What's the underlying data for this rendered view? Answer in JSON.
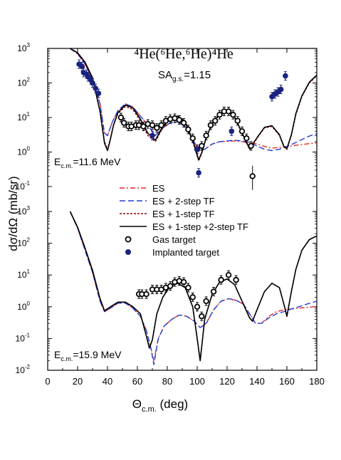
{
  "chart_data": {
    "type": "scatter",
    "title": "⁴He(⁶He,⁶He)⁴He",
    "annotation": "SAg.s.=1.15",
    "annotation_main": "SA",
    "annotation_sub": "g.s.",
    "annotation_value": "=1.15",
    "xlabel_main": "Θ",
    "xlabel_sub": "c.m.",
    "xlabel_unit": " (deg)",
    "ylabel": "dσ/dΩ  (mb/sr)",
    "xlim": [
      0,
      180
    ],
    "x_ticks": [
      "0",
      "20",
      "40",
      "60",
      "80",
      "100",
      "120",
      "140",
      "160",
      "180"
    ],
    "y_scale": "log",
    "legend": {
      "placement": "center",
      "entries": [
        {
          "label": "ES",
          "style": "dash-dot",
          "color": "#e8251f"
        },
        {
          "label": "ES + 2-step TF",
          "style": "dashed",
          "color": "#1f3fd8"
        },
        {
          "label": "ES + 1-step TF",
          "style": "short-dashed",
          "color": "#8b0000"
        },
        {
          "label": "ES + 1-step +2-step TF",
          "style": "solid",
          "color": "#000000"
        },
        {
          "label": "Gas target",
          "style": "open-circle",
          "color": "#000000"
        },
        {
          "label": "Implanted target",
          "style": "filled-circle",
          "color": "#1a237e"
        }
      ]
    },
    "panels": [
      {
        "id": "upper",
        "energy_label_main": "E",
        "energy_label_sub": "c.m.",
        "energy_label_value": "=11.6 MeV",
        "y_tick_exponents": [
          "-1",
          "0",
          "1",
          "2",
          "3"
        ],
        "ylim": [
          0.1,
          1000
        ],
        "series": [
          {
            "name": "ES",
            "color": "#e8251f",
            "style": "dash-dot",
            "x": [
              15,
              20,
              25,
              30,
              35,
              38,
              40,
              43,
              47,
              52,
              57,
              62,
              67,
              72,
              77,
              82,
              87,
              92,
              97,
              101,
              105,
              110,
              115,
              120,
              125,
              130,
              135,
              140,
              145,
              150,
              155,
              160,
              165,
              170,
              175,
              180
            ],
            "y": [
              1000,
              700,
              350,
              130,
              25,
              3.5,
              3,
              7,
              16,
              25,
              20,
              11,
              6,
              3,
              5,
              7,
              7.5,
              5.5,
              2.4,
              1.1,
              1.2,
              1.7,
              2,
              2.05,
              2.1,
              2,
              1.9,
              1.7,
              1.45,
              1.3,
              1.35,
              1.45,
              1.55,
              1.65,
              1.75,
              1.85
            ]
          },
          {
            "name": "ES + 2-step TF",
            "color": "#1f3fd8",
            "style": "dashed",
            "x": [
              15,
              20,
              25,
              30,
              35,
              38,
              40,
              43,
              47,
              52,
              57,
              62,
              67,
              72,
              77,
              82,
              87,
              92,
              97,
              101,
              105,
              110,
              115,
              120,
              125,
              130,
              135,
              140,
              145,
              150,
              155,
              160,
              165,
              170,
              175,
              180
            ],
            "y": [
              1000,
              700,
              350,
              130,
              25,
              3.5,
              3,
              7,
              16,
              25,
              20,
              11,
              6,
              3,
              5,
              7,
              7.5,
              5.5,
              2.4,
              1.1,
              1.2,
              1.7,
              2,
              2.1,
              2.2,
              2.1,
              1.9,
              1.5,
              1.2,
              1.1,
              1.2,
              1.45,
              1.8,
              2.3,
              2.9,
              3.4
            ]
          },
          {
            "name": "ES + 1-step TF",
            "color": "#8b0000",
            "style": "short-dashed",
            "x": [
              15,
              20,
              25,
              30,
              35,
              38,
              40,
              42,
              44,
              47,
              52,
              57,
              62,
              67,
              72,
              77,
              82,
              87,
              92,
              97,
              101,
              103,
              106,
              110,
              115,
              120,
              125,
              130,
              135,
              140,
              145,
              150,
              155,
              158,
              160,
              163,
              166,
              170,
              175,
              180
            ],
            "y": [
              1000,
              720,
              380,
              130,
              15,
              2,
              1.2,
              2.5,
              6,
              13,
              21,
              17,
              8,
              3,
              2,
              5,
              9,
              10,
              7,
              2,
              0.55,
              0.9,
              2.5,
              6.5,
              12,
              15,
              10,
              3.5,
              1.2,
              2.5,
              5,
              5.5,
              3,
              1.4,
              1.2,
              3,
              12,
              40,
              100,
              160
            ]
          },
          {
            "name": "ES + 1-step +2-step TF",
            "color": "#000000",
            "style": "solid",
            "x": [
              15,
              20,
              25,
              30,
              35,
              38,
              40,
              42,
              44,
              47,
              52,
              57,
              62,
              67,
              72,
              77,
              82,
              87,
              92,
              97,
              101,
              103,
              106,
              110,
              115,
              120,
              125,
              130,
              135,
              140,
              145,
              150,
              155,
              158,
              160,
              163,
              166,
              170,
              175,
              180
            ],
            "y": [
              1000,
              750,
              400,
              140,
              15,
              1.8,
              1.1,
              2.4,
              6,
              14,
              23,
              19,
              9,
              3.5,
              2.2,
              5.5,
              10,
              11,
              7.5,
              2.2,
              0.6,
              0.95,
              2.6,
              6.8,
              12.5,
              15,
              10.5,
              3.6,
              1.25,
              2.6,
              5.2,
              5.8,
              3.2,
              1.45,
              1.25,
              3.2,
              13,
              42,
              105,
              170
            ]
          }
        ],
        "points": [
          {
            "target": "Implanted target",
            "x": [
              21,
              23,
              24,
              26,
              27,
              29,
              30,
              32,
              34
            ],
            "y": [
              350,
              300,
              200,
              180,
              150,
              120,
              100,
              70,
              50
            ]
          },
          {
            "target": "Gas target",
            "x": [
              49,
              51,
              54,
              56,
              59,
              61,
              64,
              67,
              70,
              73,
              76,
              79,
              82,
              85,
              88,
              91,
              94,
              97,
              100,
              103,
              106,
              109,
              112,
              115,
              118,
              121,
              124,
              127,
              130,
              133,
              136
            ],
            "y": [
              10,
              7,
              5.5,
              5.5,
              6,
              6,
              5.5,
              6.5,
              6,
              5,
              6,
              8,
              9,
              9.5,
              8.5,
              7,
              4.5,
              2.5,
              1.2,
              1.5,
              3,
              6,
              8,
              12,
              15,
              15,
              12,
              8,
              4,
              2.5,
              1.5
            ]
          },
          {
            "target": "Gas target",
            "x": [
              137
            ],
            "y": [
              0.2
            ],
            "err": [
              0.08,
              0.4
            ],
            "note": "isolated point with large error bar"
          },
          {
            "target": "Implanted target",
            "x": [
              70,
              100,
              101,
              123
            ],
            "y": [
              3,
              1.2,
              0.25,
              4
            ]
          },
          {
            "target": "Implanted target",
            "x": [
              150,
              152,
              154,
              156,
              159
            ],
            "y": [
              40,
              48,
              55,
              65,
              160
            ]
          }
        ]
      },
      {
        "id": "lower",
        "energy_label_main": "E",
        "energy_label_sub": "c.m.",
        "energy_label_value": "=15.9 MeV",
        "y_tick_exponents": [
          "-2",
          "-1",
          "0",
          "1",
          "2",
          "3"
        ],
        "ylim": [
          0.01,
          1000
        ],
        "series": [
          {
            "name": "ES",
            "color": "#e8251f",
            "style": "dash-dot",
            "x": [
              15,
              20,
              25,
              30,
              35,
              38,
              42,
              47,
              52,
              57,
              62,
              66,
              69,
              71,
              74,
              78,
              83,
              88,
              93,
              98,
              102,
              106,
              111,
              116,
              121,
              126,
              131,
              135,
              139,
              143,
              148,
              153,
              158,
              163,
              168,
              173,
              178,
              180
            ],
            "y": [
              1000,
              300,
              60,
              12,
              1.5,
              0.7,
              0.9,
              1.3,
              1.3,
              0.9,
              0.5,
              0.18,
              0.05,
              0.02,
              0.1,
              0.25,
              0.4,
              0.55,
              0.5,
              0.35,
              0.22,
              0.3,
              0.8,
              1.5,
              1.8,
              1.6,
              1.2,
              0.6,
              0.3,
              0.3,
              0.5,
              0.7,
              0.8,
              0.85,
              0.9,
              0.95,
              1.0,
              1.0
            ]
          },
          {
            "name": "ES + 2-step TF",
            "color": "#1f3fd8",
            "style": "dashed",
            "x": [
              15,
              20,
              25,
              30,
              35,
              38,
              42,
              47,
              52,
              57,
              62,
              66,
              69,
              71,
              74,
              78,
              83,
              88,
              93,
              98,
              102,
              106,
              111,
              116,
              121,
              126,
              131,
              135,
              139,
              143,
              148,
              153,
              158,
              163,
              168,
              173,
              178,
              180
            ],
            "y": [
              1000,
              300,
              60,
              12,
              1.5,
              0.7,
              0.9,
              1.3,
              1.3,
              0.9,
              0.5,
              0.18,
              0.05,
              0.015,
              0.1,
              0.25,
              0.4,
              0.55,
              0.5,
              0.35,
              0.22,
              0.3,
              0.8,
              1.5,
              1.8,
              1.6,
              1.2,
              0.6,
              0.3,
              0.3,
              0.45,
              0.6,
              0.7,
              0.85,
              1.0,
              1.2,
              1.4,
              1.5
            ]
          },
          {
            "name": "ES + 1-step TF",
            "color": "#8b0000",
            "style": "short-dashed",
            "x": [
              15,
              20,
              25,
              30,
              35,
              38,
              42,
              47,
              52,
              57,
              62,
              66,
              68,
              70,
              73,
              77,
              82,
              87,
              92,
              97,
              100,
              102,
              105,
              110,
              115,
              120,
              125,
              130,
              135,
              137,
              140,
              145,
              150,
              155,
              158,
              160,
              163,
              166,
              170,
              175,
              180
            ],
            "y": [
              1000,
              320,
              70,
              14,
              1.8,
              0.75,
              1,
              1.4,
              1.4,
              1,
              0.6,
              0.12,
              0.05,
              0.09,
              0.6,
              2,
              4.5,
              5.5,
              4,
              1,
              0.1,
              0.02,
              0.4,
              2.5,
              6,
              7.5,
              5,
              1.5,
              0.45,
              0.35,
              0.8,
              3,
              5.5,
              4,
              1.2,
              0.5,
              3,
              15,
              60,
              130,
              170
            ]
          },
          {
            "name": "ES + 1-step +2-step TF",
            "color": "#000000",
            "style": "solid",
            "x": [
              15,
              20,
              25,
              30,
              35,
              38,
              42,
              47,
              52,
              57,
              62,
              66,
              68,
              70,
              73,
              77,
              82,
              87,
              92,
              97,
              100,
              102,
              105,
              110,
              115,
              120,
              125,
              130,
              135,
              137,
              140,
              145,
              150,
              155,
              158,
              160,
              163,
              166,
              170,
              175,
              180
            ],
            "y": [
              1000,
              320,
              70,
              14,
              1.8,
              0.75,
              1,
              1.4,
              1.4,
              1,
              0.6,
              0.12,
              0.05,
              0.09,
              0.6,
              2,
              4.5,
              5.5,
              4,
              1,
              0.1,
              0.02,
              0.4,
              2.5,
              6,
              7.5,
              5,
              1.5,
              0.45,
              0.35,
              0.8,
              3,
              5.5,
              4,
              1.2,
              0.5,
              3,
              15,
              60,
              130,
              170
            ]
          }
        ],
        "points": [
          {
            "target": "Gas target",
            "x": [
              61,
              63,
              66,
              70,
              73,
              76,
              79,
              82,
              85,
              88,
              91,
              94,
              97,
              100,
              103,
              106,
              111,
              116,
              121,
              126
            ],
            "y": [
              2.5,
              2.5,
              2.5,
              3.5,
              3.5,
              3.5,
              4,
              4.5,
              6,
              6.5,
              6,
              4,
              2,
              1,
              0.5,
              1.5,
              3,
              7,
              10,
              7
            ]
          }
        ]
      }
    ]
  }
}
